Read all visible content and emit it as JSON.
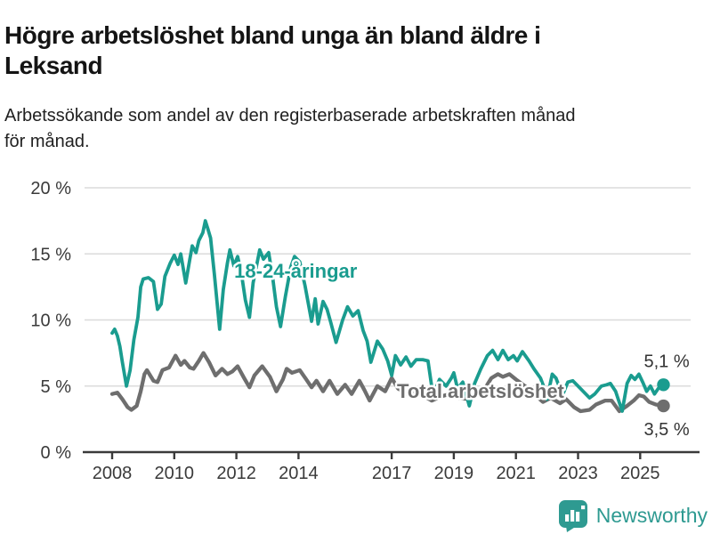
{
  "header": {
    "title": "Högre arbetslöshet bland unga än bland äldre i Leksand",
    "title_lines": [
      "Högre arbetslöshet bland unga än bland äldre i",
      "Leksand"
    ],
    "subtitle": "Arbetssökande som andel av den registerbaserade arbetskraften månad för månad.",
    "subtitle_lines": [
      "Arbetssökande som andel av den registerbaserade arbetskraften månad",
      "för månad."
    ]
  },
  "footer": {
    "brand": "Newsworthy",
    "brand_color": "#2e9a91",
    "logo_icon": "bar-chart-speech-bubble-icon"
  },
  "chart_data": {
    "type": "line",
    "title": "Högre arbetslöshet bland unga än bland äldre i Leksand",
    "subtitle": "Arbetssökande som andel av den registerbaserade arbetskraften månad för månad.",
    "ylabel": "",
    "xlabel": "",
    "ylim": [
      0,
      20
    ],
    "xlim": [
      2007.1,
      2026.9
    ],
    "grid": "horizontal",
    "legend_position": "inline-labels",
    "y_ticks": [
      {
        "value": 0,
        "label": "0 %"
      },
      {
        "value": 5,
        "label": "5 %"
      },
      {
        "value": 10,
        "label": "10 %"
      },
      {
        "value": 15,
        "label": "15 %"
      },
      {
        "value": 20,
        "label": "20 %"
      }
    ],
    "x_ticks": [
      {
        "value": 2008,
        "label": "2008"
      },
      {
        "value": 2010,
        "label": "2010"
      },
      {
        "value": 2012,
        "label": "2012"
      },
      {
        "value": 2014,
        "label": "2014"
      },
      {
        "value": 2017,
        "label": "2017"
      },
      {
        "value": 2019,
        "label": "2019"
      },
      {
        "value": 2021,
        "label": "2021"
      },
      {
        "value": 2023,
        "label": "2023"
      },
      {
        "value": 2025,
        "label": "2025"
      }
    ],
    "colors": {
      "youth": "#1a9c8f",
      "total": "#6e6e6e",
      "grid": "#dbdbdb",
      "axis": "#3a3a3a",
      "value_label": "#333333"
    },
    "annotations": [
      {
        "id": "youth",
        "text": "18-24-åringar",
        "x": 2011.93,
        "y": 13.2,
        "color": "#1a9c8f"
      },
      {
        "id": "total",
        "text": "Total arbetslöshet",
        "x": 2017.17,
        "y": 4.1,
        "color": "#6e6e6e"
      }
    ],
    "series": [
      {
        "id": "total",
        "name": "Total arbetslöshet",
        "color": "#6e6e6e",
        "end_label": "3,5 %",
        "end_value": 3.5,
        "points": [
          [
            2008.0,
            4.4
          ],
          [
            2008.17,
            4.5
          ],
          [
            2008.33,
            4.0
          ],
          [
            2008.5,
            3.4
          ],
          [
            2008.62,
            3.2
          ],
          [
            2008.79,
            3.5
          ],
          [
            2008.92,
            4.6
          ],
          [
            2009.04,
            5.9
          ],
          [
            2009.12,
            6.2
          ],
          [
            2009.33,
            5.4
          ],
          [
            2009.46,
            5.3
          ],
          [
            2009.62,
            6.2
          ],
          [
            2009.83,
            6.4
          ],
          [
            2010.04,
            7.3
          ],
          [
            2010.21,
            6.6
          ],
          [
            2010.33,
            6.9
          ],
          [
            2010.5,
            6.4
          ],
          [
            2010.62,
            6.3
          ],
          [
            2010.79,
            6.9
          ],
          [
            2010.94,
            7.5
          ],
          [
            2011.12,
            6.8
          ],
          [
            2011.33,
            5.8
          ],
          [
            2011.54,
            6.3
          ],
          [
            2011.71,
            5.9
          ],
          [
            2011.87,
            6.1
          ],
          [
            2012.04,
            6.5
          ],
          [
            2012.25,
            5.6
          ],
          [
            2012.42,
            4.9
          ],
          [
            2012.58,
            5.8
          ],
          [
            2012.83,
            6.5
          ],
          [
            2013.08,
            5.7
          ],
          [
            2013.29,
            4.6
          ],
          [
            2013.5,
            5.5
          ],
          [
            2013.62,
            6.3
          ],
          [
            2013.79,
            6.0
          ],
          [
            2014.04,
            6.2
          ],
          [
            2014.25,
            5.5
          ],
          [
            2014.42,
            4.9
          ],
          [
            2014.58,
            5.4
          ],
          [
            2014.79,
            4.6
          ],
          [
            2015.0,
            5.4
          ],
          [
            2015.25,
            4.4
          ],
          [
            2015.5,
            5.1
          ],
          [
            2015.71,
            4.4
          ],
          [
            2015.96,
            5.4
          ],
          [
            2016.12,
            4.7
          ],
          [
            2016.29,
            3.9
          ],
          [
            2016.54,
            5.0
          ],
          [
            2016.79,
            4.6
          ],
          [
            2017.0,
            5.6
          ],
          [
            2017.21,
            4.8
          ],
          [
            2017.5,
            4.4
          ],
          [
            2017.79,
            4.7
          ],
          [
            2018.0,
            4.3
          ],
          [
            2018.29,
            3.9
          ],
          [
            2018.58,
            4.2
          ],
          [
            2018.87,
            4.4
          ],
          [
            2019.17,
            4.1
          ],
          [
            2019.5,
            4.0
          ],
          [
            2019.79,
            4.4
          ],
          [
            2020.0,
            4.8
          ],
          [
            2020.21,
            5.6
          ],
          [
            2020.42,
            5.9
          ],
          [
            2020.58,
            5.7
          ],
          [
            2020.79,
            5.9
          ],
          [
            2021.0,
            5.5
          ],
          [
            2021.29,
            5.0
          ],
          [
            2021.58,
            4.4
          ],
          [
            2021.87,
            3.8
          ],
          [
            2022.12,
            4.1
          ],
          [
            2022.42,
            3.7
          ],
          [
            2022.62,
            4.0
          ],
          [
            2022.87,
            3.4
          ],
          [
            2023.08,
            3.1
          ],
          [
            2023.37,
            3.2
          ],
          [
            2023.58,
            3.6
          ],
          [
            2023.87,
            3.9
          ],
          [
            2024.08,
            3.9
          ],
          [
            2024.33,
            3.1
          ],
          [
            2024.58,
            3.5
          ],
          [
            2024.79,
            3.9
          ],
          [
            2024.96,
            4.3
          ],
          [
            2025.12,
            4.2
          ],
          [
            2025.29,
            3.8
          ],
          [
            2025.5,
            3.6
          ],
          [
            2025.75,
            3.5
          ]
        ]
      },
      {
        "id": "youth",
        "name": "18-24-åringar",
        "color": "#1a9c8f",
        "end_label": "5,1 %",
        "end_value": 5.1,
        "points": [
          [
            2008.0,
            9.0
          ],
          [
            2008.08,
            9.3
          ],
          [
            2008.17,
            8.8
          ],
          [
            2008.25,
            8.0
          ],
          [
            2008.33,
            6.8
          ],
          [
            2008.46,
            5.0
          ],
          [
            2008.58,
            6.2
          ],
          [
            2008.7,
            8.5
          ],
          [
            2008.83,
            10.2
          ],
          [
            2008.92,
            12.5
          ],
          [
            2009.0,
            13.1
          ],
          [
            2009.17,
            13.2
          ],
          [
            2009.33,
            12.9
          ],
          [
            2009.46,
            10.8
          ],
          [
            2009.58,
            11.2
          ],
          [
            2009.7,
            13.3
          ],
          [
            2009.87,
            14.3
          ],
          [
            2010.0,
            14.9
          ],
          [
            2010.12,
            14.2
          ],
          [
            2010.21,
            15.0
          ],
          [
            2010.37,
            12.8
          ],
          [
            2010.5,
            14.6
          ],
          [
            2010.58,
            15.6
          ],
          [
            2010.7,
            15.1
          ],
          [
            2010.79,
            16.0
          ],
          [
            2010.92,
            16.6
          ],
          [
            2011.0,
            17.5
          ],
          [
            2011.08,
            16.9
          ],
          [
            2011.17,
            16.2
          ],
          [
            2011.29,
            13.5
          ],
          [
            2011.46,
            9.3
          ],
          [
            2011.58,
            12.3
          ],
          [
            2011.71,
            14.3
          ],
          [
            2011.79,
            15.3
          ],
          [
            2011.92,
            14.1
          ],
          [
            2012.04,
            14.8
          ],
          [
            2012.17,
            13.4
          ],
          [
            2012.29,
            11.5
          ],
          [
            2012.42,
            10.2
          ],
          [
            2012.54,
            12.8
          ],
          [
            2012.75,
            15.3
          ],
          [
            2012.87,
            14.6
          ],
          [
            2013.04,
            15.1
          ],
          [
            2013.17,
            13.2
          ],
          [
            2013.29,
            11.0
          ],
          [
            2013.42,
            9.5
          ],
          [
            2013.58,
            11.8
          ],
          [
            2013.75,
            14.0
          ],
          [
            2013.87,
            14.8
          ],
          [
            2014.04,
            14.4
          ],
          [
            2014.21,
            12.6
          ],
          [
            2014.42,
            9.9
          ],
          [
            2014.54,
            11.6
          ],
          [
            2014.63,
            9.7
          ],
          [
            2014.79,
            11.4
          ],
          [
            2014.92,
            10.8
          ],
          [
            2015.04,
            9.8
          ],
          [
            2015.21,
            8.3
          ],
          [
            2015.42,
            10.0
          ],
          [
            2015.58,
            11.0
          ],
          [
            2015.75,
            10.3
          ],
          [
            2015.92,
            10.7
          ],
          [
            2016.08,
            9.2
          ],
          [
            2016.21,
            8.4
          ],
          [
            2016.33,
            6.8
          ],
          [
            2016.54,
            8.4
          ],
          [
            2016.71,
            7.8
          ],
          [
            2016.87,
            6.9
          ],
          [
            2017.0,
            5.8
          ],
          [
            2017.12,
            7.3
          ],
          [
            2017.29,
            6.6
          ],
          [
            2017.46,
            7.2
          ],
          [
            2017.62,
            6.5
          ],
          [
            2017.79,
            7.0
          ],
          [
            2018.0,
            7.0
          ],
          [
            2018.17,
            6.9
          ],
          [
            2018.33,
            4.3
          ],
          [
            2018.54,
            5.5
          ],
          [
            2018.75,
            5.0
          ],
          [
            2018.92,
            5.6
          ],
          [
            2019.0,
            6.0
          ],
          [
            2019.12,
            4.8
          ],
          [
            2019.29,
            5.3
          ],
          [
            2019.5,
            3.5
          ],
          [
            2019.67,
            5.2
          ],
          [
            2019.87,
            6.3
          ],
          [
            2020.08,
            7.3
          ],
          [
            2020.25,
            7.7
          ],
          [
            2020.42,
            7.0
          ],
          [
            2020.58,
            7.7
          ],
          [
            2020.75,
            7.0
          ],
          [
            2020.92,
            7.3
          ],
          [
            2021.04,
            6.9
          ],
          [
            2021.21,
            7.6
          ],
          [
            2021.42,
            6.9
          ],
          [
            2021.58,
            6.3
          ],
          [
            2021.79,
            5.6
          ],
          [
            2021.92,
            4.8
          ],
          [
            2022.0,
            4.0
          ],
          [
            2022.17,
            5.9
          ],
          [
            2022.29,
            5.6
          ],
          [
            2022.5,
            4.3
          ],
          [
            2022.67,
            5.3
          ],
          [
            2022.83,
            5.4
          ],
          [
            2023.08,
            4.8
          ],
          [
            2023.37,
            4.1
          ],
          [
            2023.54,
            4.4
          ],
          [
            2023.75,
            5.0
          ],
          [
            2023.92,
            5.1
          ],
          [
            2024.04,
            5.2
          ],
          [
            2024.21,
            4.6
          ],
          [
            2024.42,
            3.1
          ],
          [
            2024.58,
            5.2
          ],
          [
            2024.71,
            5.8
          ],
          [
            2024.83,
            5.5
          ],
          [
            2024.96,
            5.9
          ],
          [
            2025.08,
            5.3
          ],
          [
            2025.21,
            4.6
          ],
          [
            2025.33,
            5.0
          ],
          [
            2025.46,
            4.4
          ],
          [
            2025.58,
            4.8
          ],
          [
            2025.75,
            5.1
          ]
        ]
      }
    ]
  }
}
